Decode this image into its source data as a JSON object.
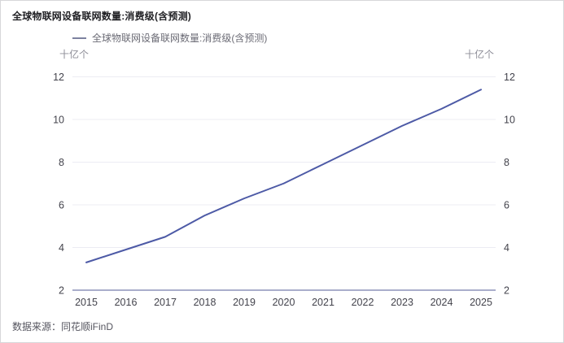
{
  "page": {
    "title": "全球物联网设备联网数量:消费级(含预测)",
    "source": "数据来源：同花顺iFinD"
  },
  "legend": {
    "label": "全球物联网设备联网数量:消费级(含预测)"
  },
  "axes": {
    "unit_left": "十亿个",
    "unit_right": "十亿个"
  },
  "chart_data": {
    "type": "line",
    "title": "全球物联网设备联网数量:消费级(含预测)",
    "legend_entries": [
      "全球物联网设备联网数量:消费级(含预测)"
    ],
    "unit": "十亿个",
    "categories": [
      "2015",
      "2016",
      "2017",
      "2018",
      "2019",
      "2020",
      "2021",
      "2022",
      "2023",
      "2024",
      "2025"
    ],
    "series": [
      {
        "name": "全球物联网设备联网数量:消费级(含预测)",
        "values": [
          3.3,
          3.9,
          4.5,
          5.5,
          6.3,
          7.0,
          7.9,
          8.8,
          9.7,
          10.5,
          11.4
        ]
      }
    ],
    "ylim": [
      2,
      12
    ],
    "yticks": [
      2,
      4,
      6,
      8,
      10,
      12
    ],
    "grid": true,
    "legend_position": "top-left",
    "colors": {
      "line": "#4d5aa6",
      "axis_line": "#8e94ba",
      "gridline": "#ececf3",
      "tick_text": "#43434c",
      "unit_text": "#8d8d97"
    }
  }
}
